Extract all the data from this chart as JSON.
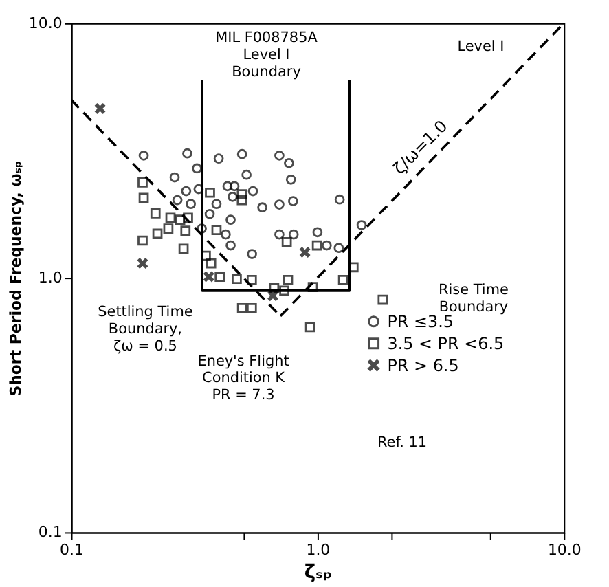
{
  "chart_data": {
    "type": "scatter",
    "xlabel": "ζₛₚ",
    "ylabel": "Short Period Frequency, ωₛₚ",
    "xlim": [
      0.1,
      10
    ],
    "ylim": [
      0.1,
      10
    ],
    "log": "xy",
    "grid": false,
    "legend": "bottom right",
    "xticks": [
      0.1,
      {
        "value": 0.5,
        "label": null
      },
      {
        "value": 1,
        "label": "1.0"
      },
      {
        "value": 2,
        "label": null
      },
      {
        "value": 5,
        "label": null
      },
      {
        "value": 10,
        "label": "10.0"
      }
    ],
    "yticks": [
      0.1,
      {
        "value": 1,
        "label": "1.0"
      },
      {
        "value": 10,
        "label": "10.0"
      }
    ],
    "series": [
      {
        "name": "PR ≤3.5",
        "type": "scatter",
        "marker": "circle",
        "color": "#000000",
        "x": [
          0.197,
          0.296,
          0.397,
          0.494,
          0.7,
          0.766,
          0.324,
          0.515,
          0.263,
          0.293,
          0.329,
          0.431,
          0.46,
          0.547,
          0.7,
          0.597,
          0.27,
          0.306,
          0.389,
          0.452,
          0.365,
          0.444,
          0.339,
          0.424,
          0.444,
          0.542,
          0.7,
          0.78,
          0.796,
          0.8,
          1.0,
          1.09,
          1.22,
          1.23,
          1.51
        ],
        "values": [
          3.02,
          3.08,
          2.94,
          3.06,
          3.02,
          2.82,
          2.69,
          2.54,
          2.48,
          2.19,
          2.23,
          2.29,
          2.29,
          2.19,
          1.94,
          1.89,
          2.02,
          1.95,
          1.95,
          2.08,
          1.78,
          1.69,
          1.56,
          1.48,
          1.34,
          1.24,
          1.48,
          2.43,
          2.0,
          1.48,
          1.51,
          1.34,
          1.31,
          2.03,
          1.61
        ]
      },
      {
        "name": "3.5 < PR <6.5",
        "type": "scatter",
        "marker": "square",
        "color": "#000000",
        "x": [
          0.195,
          0.197,
          0.22,
          0.253,
          0.277,
          0.298,
          0.248,
          0.224,
          0.195,
          0.291,
          0.286,
          0.366,
          0.493,
          0.493,
          0.389,
          0.352,
          0.37,
          0.401,
          0.47,
          0.541,
          0.667,
          0.733,
          0.759,
          0.957,
          1.27,
          1.4,
          1.84,
          0.933,
          0.494,
          0.541,
          0.75,
          0.995
        ],
        "values": [
          2.37,
          2.06,
          1.79,
          1.72,
          1.69,
          1.72,
          1.56,
          1.49,
          1.4,
          1.53,
          1.3,
          2.16,
          2.13,
          2.02,
          1.54,
          1.22,
          1.14,
          1.01,
          0.99,
          0.98,
          0.91,
          0.89,
          0.98,
          0.92,
          0.98,
          1.1,
          0.82,
          0.64,
          0.76,
          0.76,
          1.38,
          1.34
        ]
      },
      {
        "name": "PR > 6.5",
        "type": "scatter",
        "marker": "cross",
        "color": "#000000",
        "x": [
          0.131,
          0.195,
          0.362,
          0.659,
          0.889
        ],
        "values": [
          4.62,
          1.14,
          1.01,
          0.85,
          1.26
        ]
      },
      {
        "type": "line",
        "line_style": "solid",
        "color": "#000000",
        "x": [
          0.34,
          0.34,
          1.35,
          1.35
        ],
        "values": [
          6.0,
          0.89,
          0.89,
          6.0
        ]
      },
      {
        "type": "line",
        "line_style": "dashed",
        "color": "#000000",
        "x": [
          0.1,
          0.707
        ],
        "values": [
          5.0,
          0.707
        ]
      },
      {
        "type": "line",
        "line_style": "dashed",
        "color": "#000000",
        "x": [
          0.707,
          10
        ],
        "values": [
          0.707,
          10
        ]
      }
    ],
    "annotations": [
      "MIL F008785A\nLevel I\nBoundary",
      "Level I",
      "ζ/ω=1.0",
      "Rise Time\nBoundary",
      "Settling Time\nBoundary,\nζω = 0.5",
      "Eney's Flight\nCondition  K\nPR = 7.3",
      "Ref. 11"
    ]
  }
}
